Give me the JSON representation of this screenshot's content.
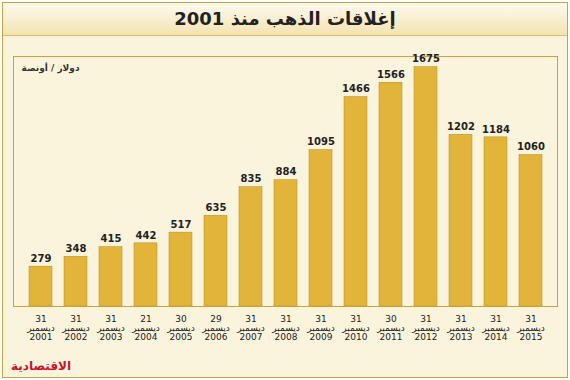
{
  "chart_data": {
    "type": "bar",
    "title": "إغلاقات الذهب منذ 2001",
    "ylabel": "دولار / أونصة",
    "annotations": [
      "الاقتصادية"
    ],
    "categories": [
      "31 ديسمبر 2001",
      "31 ديسمبر 2002",
      "31 ديسمبر 2003",
      "21 ديسمبر 2004",
      "30 ديسمبر 2005",
      "29 ديسمبر 2006",
      "31 ديسمبر 2007",
      "31 ديسمبر 2008",
      "31 ديسمبر 2009",
      "31 ديسمبر 2010",
      "30 ديسمبر 2011",
      "31 ديسمبر 2012",
      "31 ديسمبر 2013",
      "31 ديسمبر 2014",
      "31 ديسمبر 2015"
    ],
    "values": [
      279,
      348,
      415,
      442,
      517,
      635,
      835,
      884,
      1095,
      1466,
      1566,
      1675,
      1202,
      1184,
      1060
    ],
    "color": "#e2b53a",
    "ylim": [
      0,
      1750
    ],
    "yticks": [],
    "grid": false,
    "data_labels": true,
    "tick_labels": "x"
  }
}
